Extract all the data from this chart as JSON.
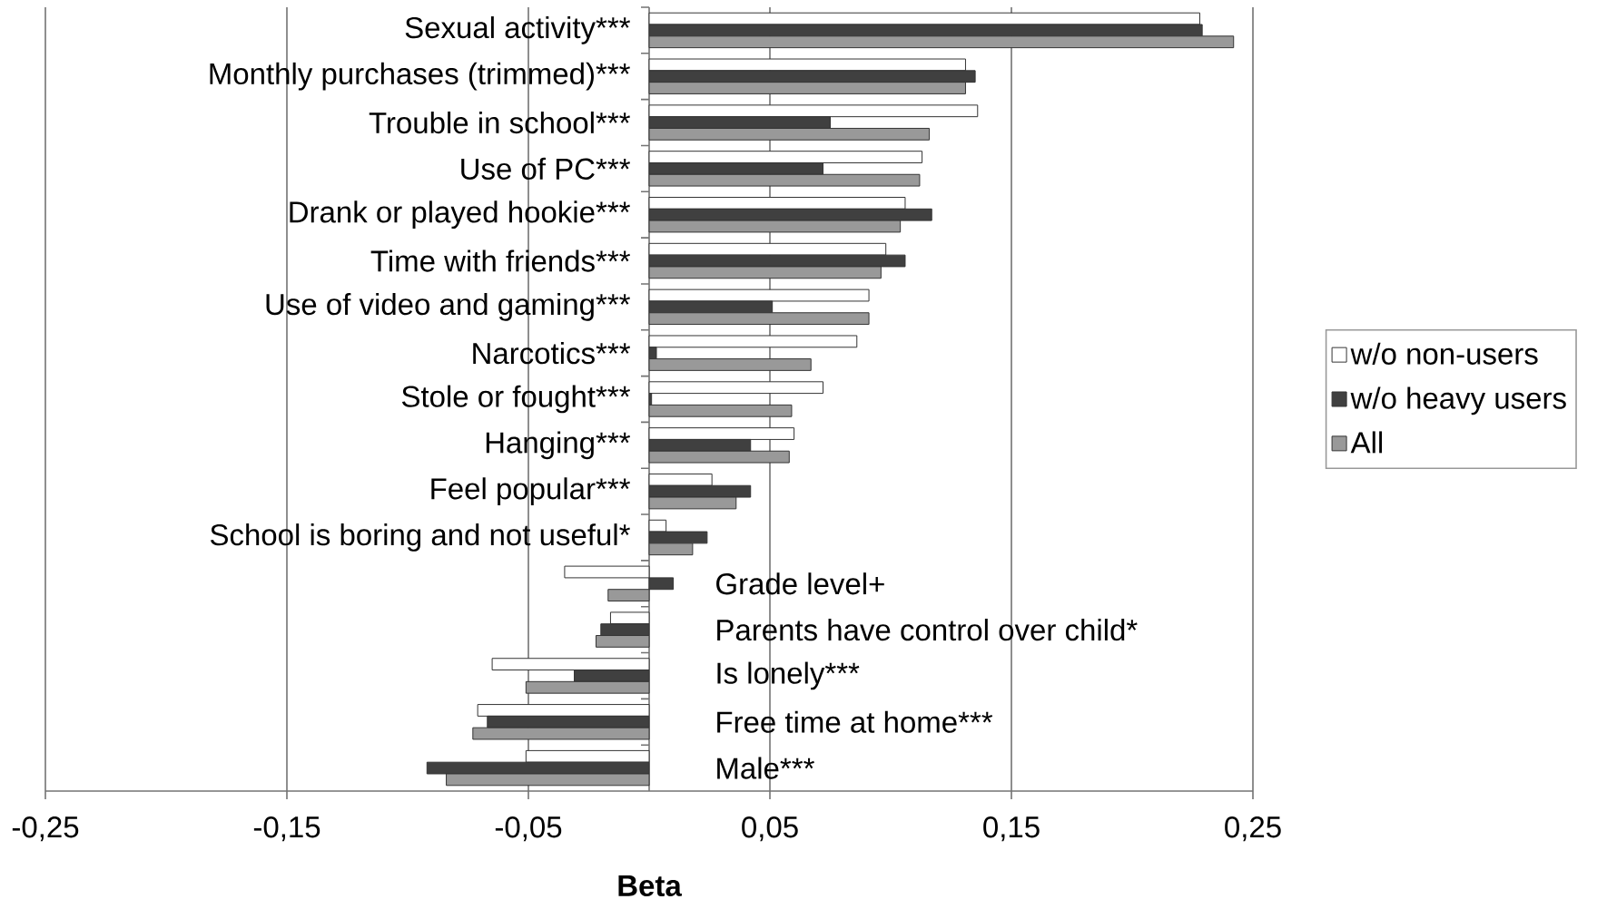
{
  "chart_data": {
    "type": "bar",
    "orientation": "horizontal",
    "xlabel": "Beta",
    "categories": [
      "Sexual activity***",
      "Monthly purchases (trimmed)***",
      "Trouble in school***",
      "Use of PC***",
      "Drank or played hookie***",
      "Time with friends***",
      "Use of video and gaming***",
      "Narcotics***",
      "Stole or fought***",
      "Hanging***",
      "Feel popular***",
      "School is boring and not useful*",
      "Grade level+",
      "Parents have control over child*",
      "Is lonely***",
      "Free time at home***",
      "Male***"
    ],
    "series": [
      {
        "name": "w/o non-users",
        "color": "#ffffff",
        "values": [
          0.228,
          0.131,
          0.136,
          0.113,
          0.106,
          0.098,
          0.091,
          0.086,
          0.072,
          0.06,
          0.026,
          0.007,
          -0.035,
          -0.016,
          -0.065,
          -0.071,
          -0.051
        ]
      },
      {
        "name": "w/o heavy users",
        "color": "#404040",
        "values": [
          0.229,
          0.135,
          0.075,
          0.072,
          0.117,
          0.106,
          0.051,
          0.003,
          0.001,
          0.042,
          0.042,
          0.024,
          0.01,
          -0.02,
          -0.031,
          -0.067,
          -0.092
        ]
      },
      {
        "name": "All",
        "color": "#999999",
        "values": [
          0.242,
          0.131,
          0.116,
          0.112,
          0.104,
          0.096,
          0.091,
          0.067,
          0.059,
          0.058,
          0.036,
          0.018,
          -0.017,
          -0.022,
          -0.051,
          -0.073,
          -0.084
        ]
      }
    ],
    "xlim": [
      -0.25,
      0.25
    ],
    "xticks": [
      {
        "value": -0.25,
        "label": "-0,25"
      },
      {
        "value": -0.15,
        "label": "-0,15"
      },
      {
        "value": -0.05,
        "label": "-0,05"
      },
      {
        "value": 0.05,
        "label": "0,05"
      },
      {
        "value": 0.15,
        "label": "0,15"
      },
      {
        "value": 0.25,
        "label": "0,25"
      }
    ],
    "grid": "x",
    "legend": "right"
  }
}
